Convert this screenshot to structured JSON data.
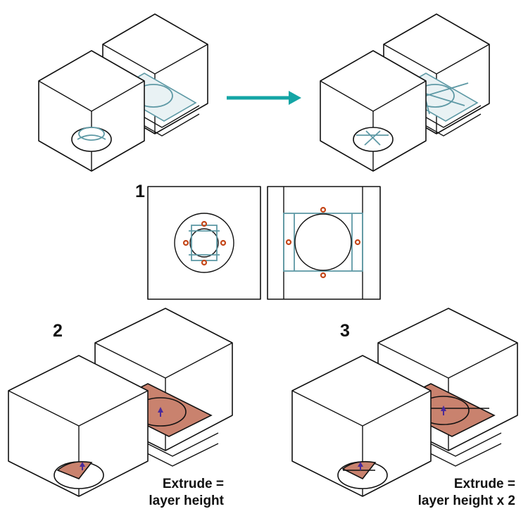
{
  "steps": [
    {
      "number": "1"
    },
    {
      "number": "2",
      "caption_line1": "Extrude =",
      "caption_line2": "layer height"
    },
    {
      "number": "3",
      "caption_line1": "Extrude =",
      "caption_line2": "layer height x 2"
    }
  ],
  "colors": {
    "outline": "#111111",
    "bridge_lines": "#5e99a5",
    "flow_arrow": "#14a5a5",
    "extrude_patch": "#c9826e",
    "markers": "#c44719",
    "up_arrow": "#4a2a9a"
  },
  "icons": [
    "right-arrow-icon",
    "up-arrow-icon",
    "marker-icon"
  ]
}
